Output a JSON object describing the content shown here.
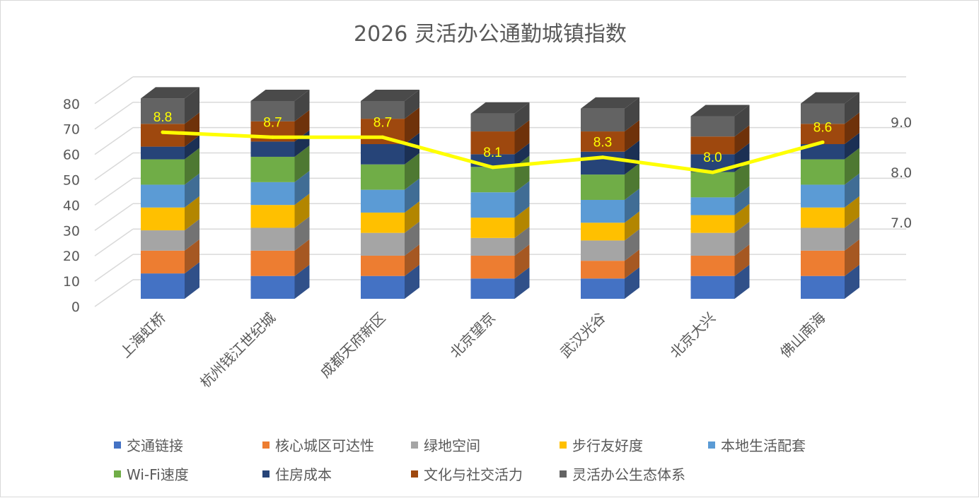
{
  "chart_data": {
    "type": "bar",
    "stacked": true,
    "style": "3d-column",
    "title": "2026 灵活办公通勤城镇指数",
    "categories": [
      "上海虹桥",
      "杭州钱江世纪城",
      "成都天府新区",
      "北京望京",
      "武汉光谷",
      "北京大兴",
      "佛山南海"
    ],
    "series": [
      {
        "name": "交通链接",
        "color": "#4472C4",
        "values": [
          10,
          9,
          9,
          8,
          8,
          9,
          9
        ]
      },
      {
        "name": "核心城区可达性",
        "color": "#ED7D31",
        "values": [
          9,
          10,
          8,
          9,
          7,
          8,
          10
        ]
      },
      {
        "name": "绿地空间",
        "color": "#A5A5A5",
        "values": [
          8,
          9,
          9,
          7,
          8,
          9,
          9
        ]
      },
      {
        "name": "步行友好度",
        "color": "#FFC000",
        "values": [
          9,
          9,
          8,
          8,
          7,
          7,
          8
        ]
      },
      {
        "name": "本地生活配套",
        "color": "#5B9BD5",
        "values": [
          9,
          9,
          9,
          10,
          9,
          7,
          9
        ]
      },
      {
        "name": "Wi-Fi速度",
        "color": "#70AD47",
        "values": [
          10,
          10,
          10,
          10,
          10,
          10,
          10
        ]
      },
      {
        "name": "住房成本",
        "color": "#264478",
        "values": [
          5,
          6,
          8,
          5,
          9,
          7,
          6
        ]
      },
      {
        "name": "文化与社交活力",
        "color": "#9E480E",
        "values": [
          9,
          8,
          10,
          9,
          8,
          7,
          8
        ]
      },
      {
        "name": "灵活办公生态体系",
        "color": "#636363",
        "values": [
          10,
          8,
          7,
          7,
          9,
          8,
          8
        ]
      }
    ],
    "line_series": {
      "color": "#FFFF00",
      "axis": "secondary",
      "values": [
        8.8,
        8.7,
        8.7,
        8.1,
        8.3,
        8.0,
        8.6
      ],
      "labels": [
        "8.8",
        "8.7",
        "8.7",
        "8.1",
        "8.3",
        "8.0",
        "8.6"
      ]
    },
    "y_axis": {
      "ticks": [
        "0",
        "10",
        "20",
        "30",
        "40",
        "50",
        "60",
        "70",
        "80"
      ],
      "ylim": [
        0,
        80
      ]
    },
    "y2_axis": {
      "ticks": [
        "7.0",
        "8.0",
        "9.0"
      ],
      "tick_values": [
        7,
        8,
        9
      ]
    },
    "grid": true,
    "legend": {
      "position": "bottom"
    }
  }
}
